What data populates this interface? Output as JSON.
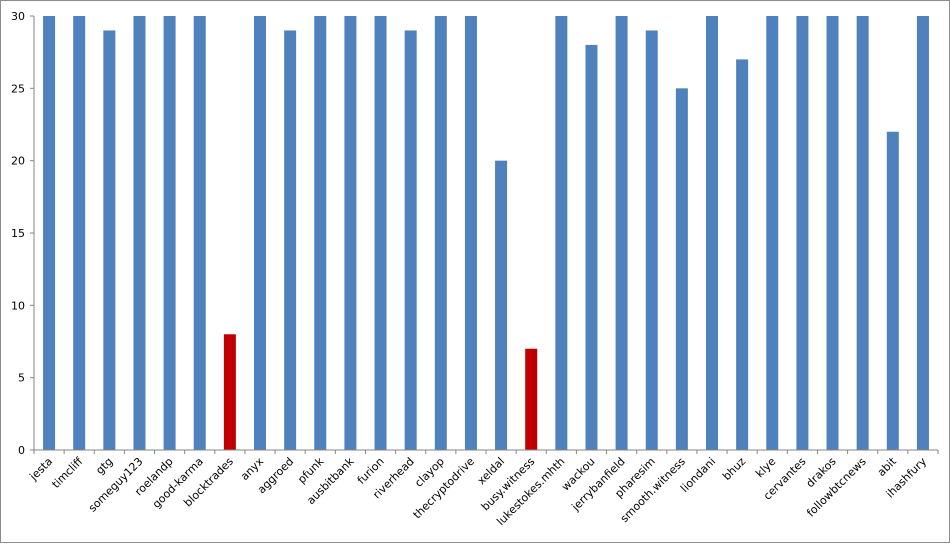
{
  "chart_data": {
    "type": "bar",
    "categories": [
      "jesta",
      "timcliff",
      "gtg",
      "someguy123",
      "roelandp",
      "good-karma",
      "blocktrades",
      "anyx",
      "aggroed",
      "pfunk",
      "ausbitbank",
      "furion",
      "riverhead",
      "clayop",
      "thecryptodrive",
      "xeldal",
      "busy.witness",
      "lukestokes.mhth",
      "wackou",
      "jerrybanfield",
      "pharesim",
      "smooth.witness",
      "liondani",
      "bhuz",
      "klye",
      "cervantes",
      "drakos",
      "followbtcnews",
      "abit",
      "ihashfury"
    ],
    "values": [
      30,
      30,
      29,
      30,
      30,
      30,
      8,
      30,
      29,
      30,
      30,
      30,
      29,
      30,
      30,
      20,
      7,
      30,
      28,
      30,
      29,
      25,
      30,
      27,
      30,
      30,
      30,
      30,
      22,
      30
    ],
    "highlighted": [
      "blocktrades",
      "busy.witness"
    ],
    "ylim": [
      0,
      30
    ],
    "yticks": [
      0,
      5,
      10,
      15,
      20,
      25,
      30
    ],
    "grid": false,
    "legend": "none",
    "title": "",
    "xlabel": "",
    "ylabel": "",
    "colors": {
      "bar": "#4f81bd",
      "highlight": "#c00000",
      "axis": "#868686"
    }
  }
}
